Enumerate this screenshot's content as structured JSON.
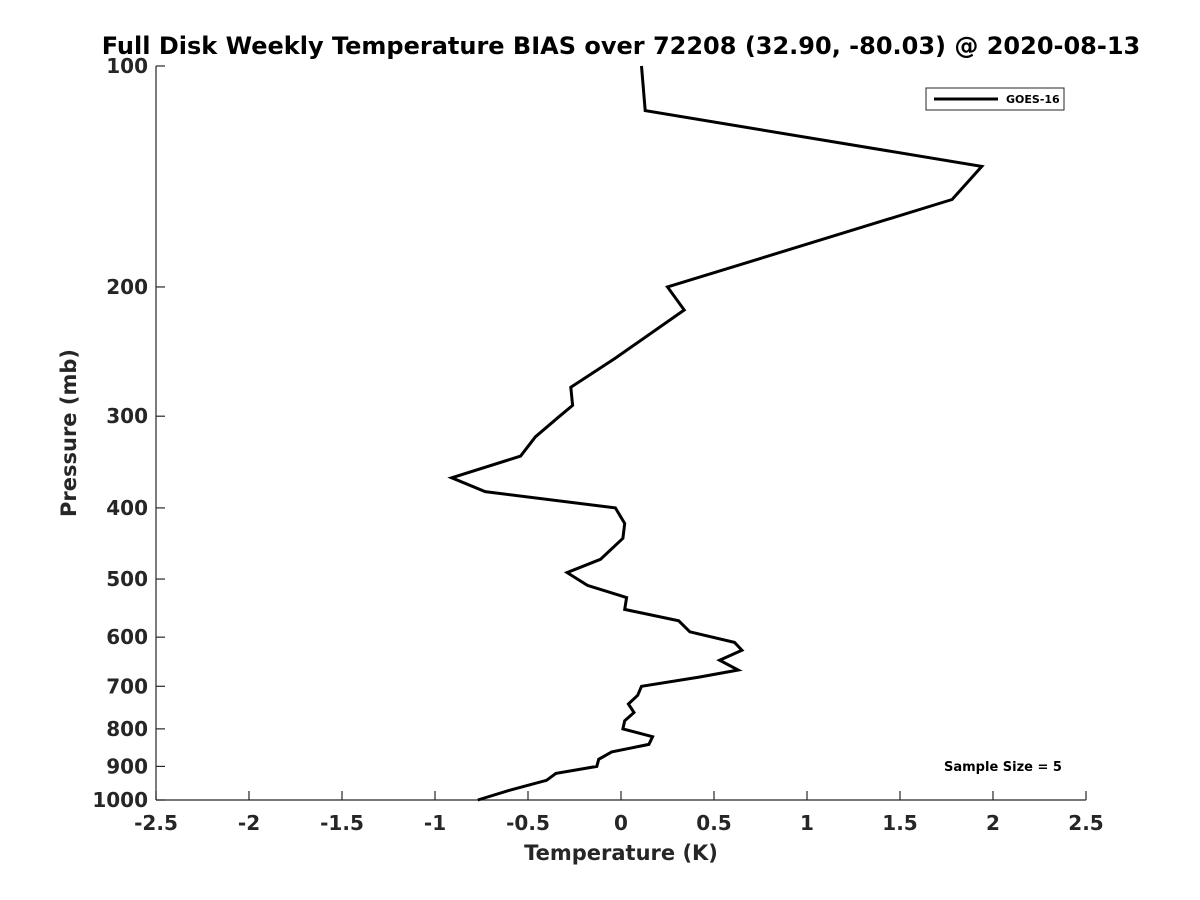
{
  "chart_data": {
    "type": "line",
    "title": "Full Disk Weekly Temperature BIAS over 72208 (32.90, -80.03) @ 2020-08-13",
    "xlabel": "Temperature (K)",
    "ylabel": "Pressure (mb)",
    "xlim": [
      -2.5,
      2.5
    ],
    "ylim": [
      1000,
      100
    ],
    "yscale": "log",
    "y_reversed": true,
    "grid": false,
    "legend_position": "top-right",
    "x_ticks": [
      "-2.5",
      "-2",
      "-1.5",
      "-1",
      "-0.5",
      "0",
      "0.5",
      "1",
      "1.5",
      "2",
      "2.5"
    ],
    "y_ticks": [
      "100",
      "200",
      "300",
      "400",
      "500",
      "600",
      "700",
      "800",
      "900",
      "1000"
    ],
    "series": [
      {
        "name": "GOES-16",
        "color": "#000000",
        "points": [
          {
            "x": 0.11,
            "p": 100
          },
          {
            "x": 0.13,
            "p": 115
          },
          {
            "x": 1.94,
            "p": 137
          },
          {
            "x": 1.78,
            "p": 152
          },
          {
            "x": 0.25,
            "p": 200
          },
          {
            "x": 0.34,
            "p": 215
          },
          {
            "x": -0.03,
            "p": 250
          },
          {
            "x": -0.27,
            "p": 274
          },
          {
            "x": -0.26,
            "p": 290
          },
          {
            "x": -0.33,
            "p": 300
          },
          {
            "x": -0.46,
            "p": 320
          },
          {
            "x": -0.54,
            "p": 340
          },
          {
            "x": -0.91,
            "p": 364
          },
          {
            "x": -0.73,
            "p": 380
          },
          {
            "x": -0.03,
            "p": 400
          },
          {
            "x": 0.02,
            "p": 420
          },
          {
            "x": 0.01,
            "p": 440
          },
          {
            "x": -0.11,
            "p": 470
          },
          {
            "x": -0.29,
            "p": 490
          },
          {
            "x": -0.18,
            "p": 510
          },
          {
            "x": 0.03,
            "p": 530
          },
          {
            "x": 0.02,
            "p": 550
          },
          {
            "x": 0.31,
            "p": 570
          },
          {
            "x": 0.37,
            "p": 590
          },
          {
            "x": 0.61,
            "p": 610
          },
          {
            "x": 0.65,
            "p": 625
          },
          {
            "x": 0.53,
            "p": 645
          },
          {
            "x": 0.63,
            "p": 665
          },
          {
            "x": 0.42,
            "p": 680
          },
          {
            "x": 0.11,
            "p": 700
          },
          {
            "x": 0.09,
            "p": 720
          },
          {
            "x": 0.04,
            "p": 740
          },
          {
            "x": 0.07,
            "p": 760
          },
          {
            "x": 0.02,
            "p": 780
          },
          {
            "x": 0.01,
            "p": 800
          },
          {
            "x": 0.17,
            "p": 820
          },
          {
            "x": 0.15,
            "p": 840
          },
          {
            "x": -0.05,
            "p": 860
          },
          {
            "x": -0.12,
            "p": 880
          },
          {
            "x": -0.13,
            "p": 900
          },
          {
            "x": -0.35,
            "p": 920
          },
          {
            "x": -0.4,
            "p": 940
          },
          {
            "x": -0.6,
            "p": 970
          },
          {
            "x": -0.77,
            "p": 1000
          }
        ]
      }
    ],
    "annotation": "Sample Size = 5"
  }
}
